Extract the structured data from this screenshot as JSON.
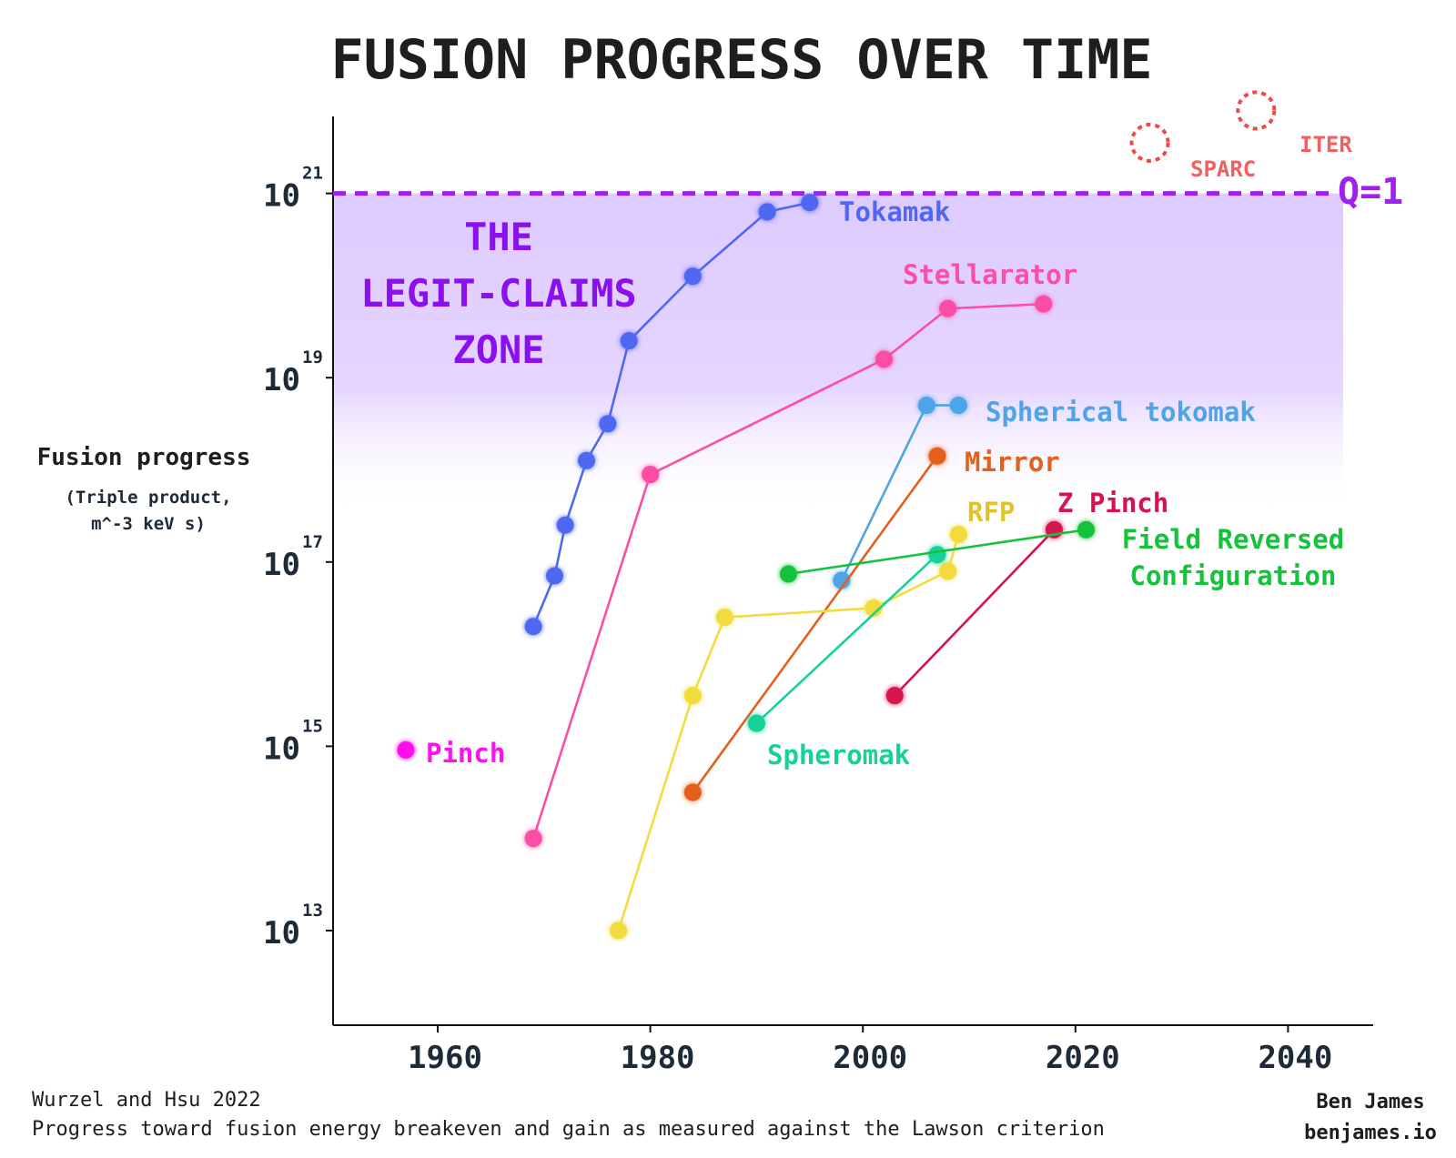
{
  "chart_data": {
    "type": "scatter",
    "title": "FUSION PROGRESS OVER TIME",
    "ylabel": "Fusion progress",
    "ylabel_sub": [
      "(Triple product,",
      "m^-3 keV s)"
    ],
    "xlabel": "",
    "xlim": [
      1950,
      2047
    ],
    "ylim_log10": [
      12,
      22
    ],
    "x_ticks": [
      1960,
      1980,
      2000,
      2020,
      2040
    ],
    "x_tick_labels": [
      "1960",
      "1980",
      "2000",
      "2020",
      "2040"
    ],
    "y_ticks": [
      {
        "exp": 13,
        "base": "10",
        "sup": "13"
      },
      {
        "exp": 15,
        "base": "10",
        "sup": "15"
      },
      {
        "exp": 17,
        "base": "10",
        "sup": "17"
      },
      {
        "exp": 19,
        "base": "10",
        "sup": "19"
      },
      {
        "exp": 21,
        "base": "10",
        "sup": "21"
      }
    ],
    "threshold": {
      "label": "Q=1",
      "log10": 21,
      "color": "#a020f0"
    },
    "zone": {
      "lines": [
        "THE",
        "LEGIT-CLAIMS",
        "ZONE"
      ],
      "from_log10": 17.5,
      "to_log10": 21,
      "color": "#8a2be2"
    },
    "series": [
      {
        "name": "Tokamak",
        "color": "#4f67f2",
        "x": [
          1969,
          1971,
          1972,
          1974,
          1976,
          1978,
          1984,
          1991,
          1995
        ],
        "y_log10": [
          16.3,
          16.85,
          17.4,
          18.1,
          18.5,
          19.4,
          20.1,
          20.8,
          20.9
        ]
      },
      {
        "name": "Stellarator",
        "color": "#fb4ea5",
        "x": [
          1969,
          1980,
          2002,
          2008,
          2017
        ],
        "y_log10": [
          14.0,
          17.95,
          19.2,
          19.75,
          19.8
        ]
      },
      {
        "name": "Spherical tokomak",
        "color": "#4ea4e6",
        "x": [
          1998,
          2006,
          2009
        ],
        "y_log10": [
          16.8,
          18.7,
          18.7
        ]
      },
      {
        "name": "Mirror",
        "color": "#e2611d",
        "x": [
          1984,
          2007
        ],
        "y_log10": [
          14.5,
          18.15
        ]
      },
      {
        "name": "RFP",
        "color": "#f2dc3e",
        "x": [
          1977,
          1984,
          1987,
          2001,
          2008,
          2009
        ],
        "y_log10": [
          13.0,
          15.55,
          16.4,
          16.5,
          16.9,
          17.3
        ]
      },
      {
        "name": "Spheromak",
        "color": "#16d29a",
        "x": [
          1990,
          2007
        ],
        "y_log10": [
          15.25,
          17.08
        ]
      },
      {
        "name": "Z Pinch",
        "color": "#d6124f",
        "x": [
          2003,
          2018
        ],
        "y_log10": [
          15.55,
          17.35
        ]
      },
      {
        "name": "Field Reversed Configuration",
        "color": "#16c23c",
        "x": [
          1993,
          2021
        ],
        "y_log10": [
          16.87,
          17.35
        ]
      },
      {
        "name": "Pinch",
        "color": "#ff10ef",
        "x": [
          1957
        ],
        "y_log10": [
          14.96
        ]
      }
    ],
    "projections": [
      {
        "name": "SPARC",
        "color": "#f04848",
        "x": 2027,
        "y_log10": 21.55
      },
      {
        "name": "ITER",
        "color": "#f04848",
        "x": 2037,
        "y_log10": 21.9
      }
    ]
  },
  "footer": {
    "source": "Wurzel and Hsu 2022",
    "description": "Progress toward fusion energy breakeven and gain as measured against the Lawson criterion",
    "author": "Ben James",
    "site": "benjames.io"
  }
}
